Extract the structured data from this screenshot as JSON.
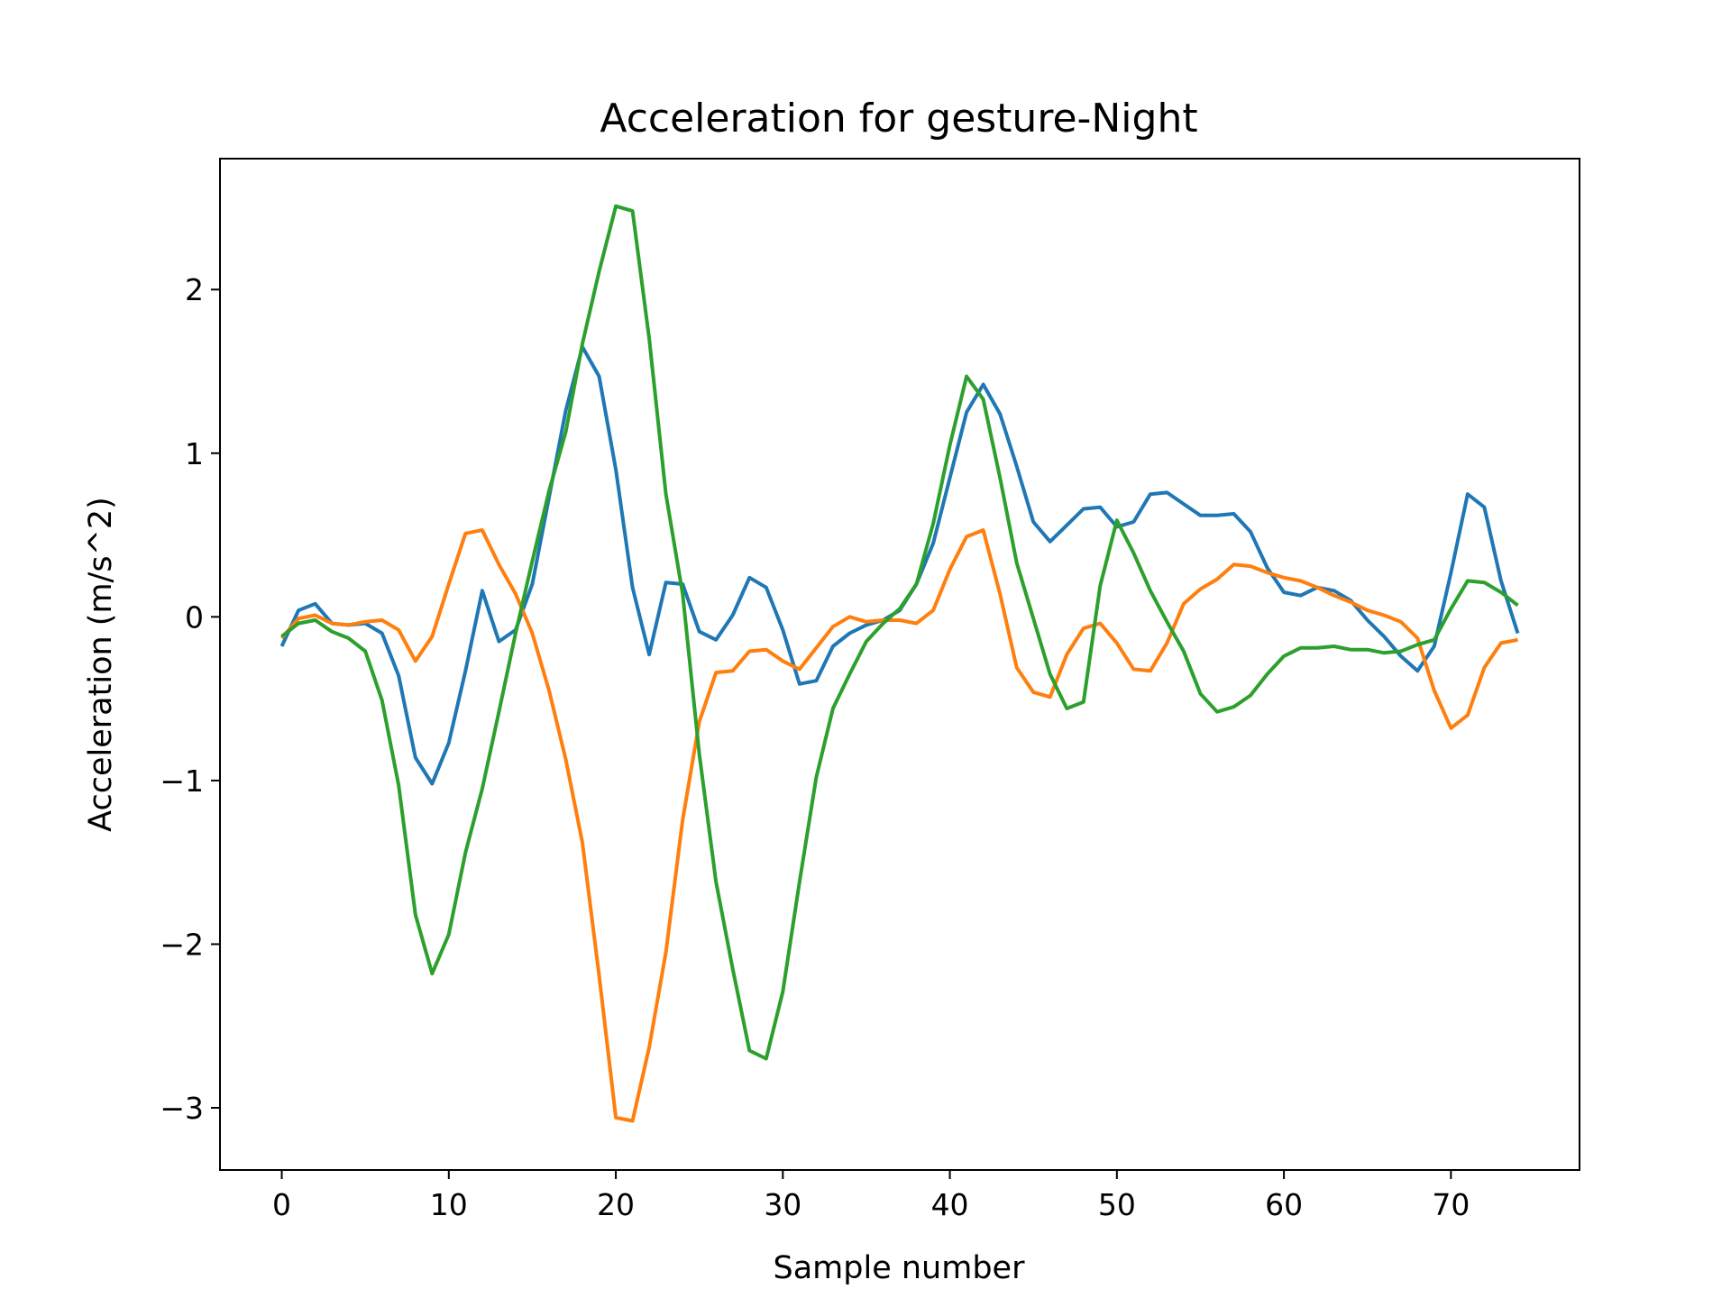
{
  "chart_data": {
    "type": "line",
    "title": "Acceleration for gesture-Night",
    "xlabel": "Sample number",
    "ylabel": "Acceleration (m/s^2)",
    "xlim": [
      -3.7,
      77.7
    ],
    "ylim": [
      -3.38,
      2.8
    ],
    "xticks": [
      0,
      10,
      20,
      30,
      40,
      50,
      60,
      70
    ],
    "yticks": [
      -3,
      -2,
      -1,
      0,
      1,
      2
    ],
    "grid": false,
    "legend": "none",
    "x": [
      0,
      1,
      2,
      3,
      4,
      5,
      6,
      7,
      8,
      9,
      10,
      11,
      12,
      13,
      14,
      15,
      16,
      17,
      18,
      19,
      20,
      21,
      22,
      23,
      24,
      25,
      26,
      27,
      28,
      29,
      30,
      31,
      32,
      33,
      34,
      35,
      36,
      37,
      38,
      39,
      40,
      41,
      42,
      43,
      44,
      45,
      46,
      47,
      48,
      49,
      50,
      51,
      52,
      53,
      54,
      55,
      56,
      57,
      58,
      59,
      60,
      61,
      62,
      63,
      64,
      65,
      66,
      67,
      68,
      69,
      70,
      71,
      72,
      73,
      74
    ],
    "series": [
      {
        "color": "#1f77b4",
        "values": [
          -0.18,
          0.04,
          0.08,
          -0.04,
          -0.05,
          -0.04,
          -0.1,
          -0.36,
          -0.86,
          -1.02,
          -0.77,
          -0.33,
          0.16,
          -0.15,
          -0.08,
          0.2,
          0.73,
          1.26,
          1.65,
          1.47,
          0.9,
          0.18,
          -0.23,
          0.21,
          0.2,
          -0.09,
          -0.14,
          0.01,
          0.24,
          0.18,
          -0.08,
          -0.41,
          -0.39,
          -0.18,
          -0.1,
          -0.05,
          -0.02,
          0.04,
          0.2,
          0.45,
          0.85,
          1.25,
          1.42,
          1.24,
          0.92,
          0.58,
          0.46,
          0.56,
          0.66,
          0.67,
          0.55,
          0.58,
          0.75,
          0.76,
          0.69,
          0.62,
          0.62,
          0.63,
          0.52,
          0.3,
          0.15,
          0.13,
          0.18,
          0.16,
          0.1,
          -0.02,
          -0.12,
          -0.24,
          -0.33,
          -0.18,
          0.27,
          0.75,
          0.67,
          0.22,
          -0.1
        ]
      },
      {
        "color": "#ff7f0e",
        "values": [
          -0.13,
          -0.01,
          0.01,
          -0.04,
          -0.05,
          -0.03,
          -0.02,
          -0.08,
          -0.27,
          -0.12,
          0.2,
          0.51,
          0.53,
          0.32,
          0.14,
          -0.1,
          -0.45,
          -0.87,
          -1.38,
          -2.19,
          -3.06,
          -3.08,
          -2.63,
          -2.05,
          -1.24,
          -0.64,
          -0.34,
          -0.33,
          -0.21,
          -0.2,
          -0.27,
          -0.32,
          -0.19,
          -0.06,
          0.0,
          -0.03,
          -0.02,
          -0.02,
          -0.04,
          0.04,
          0.29,
          0.49,
          0.53,
          0.14,
          -0.31,
          -0.46,
          -0.49,
          -0.23,
          -0.07,
          -0.04,
          -0.16,
          -0.32,
          -0.33,
          -0.16,
          0.08,
          0.17,
          0.23,
          0.32,
          0.31,
          0.27,
          0.24,
          0.22,
          0.18,
          0.13,
          0.09,
          0.04,
          0.01,
          -0.03,
          -0.13,
          -0.45,
          -0.68,
          -0.6,
          -0.31,
          -0.16,
          -0.14
        ]
      },
      {
        "color": "#2ca02c",
        "values": [
          -0.12,
          -0.04,
          -0.02,
          -0.09,
          -0.13,
          -0.21,
          -0.51,
          -1.03,
          -1.82,
          -2.18,
          -1.94,
          -1.44,
          -1.05,
          -0.58,
          -0.1,
          0.34,
          0.77,
          1.13,
          1.67,
          2.11,
          2.51,
          2.48,
          1.7,
          0.75,
          0.14,
          -0.84,
          -1.62,
          -2.15,
          -2.65,
          -2.7,
          -2.29,
          -1.62,
          -0.98,
          -0.56,
          -0.35,
          -0.15,
          -0.04,
          0.05,
          0.2,
          0.57,
          1.05,
          1.47,
          1.33,
          0.85,
          0.33,
          -0.01,
          -0.35,
          -0.56,
          -0.52,
          0.19,
          0.59,
          0.39,
          0.16,
          -0.03,
          -0.21,
          -0.47,
          -0.58,
          -0.55,
          -0.48,
          -0.35,
          -0.24,
          -0.19,
          -0.19,
          -0.18,
          -0.2,
          -0.2,
          -0.22,
          -0.21,
          -0.17,
          -0.14,
          0.05,
          0.22,
          0.21,
          0.15,
          0.07
        ]
      }
    ]
  }
}
